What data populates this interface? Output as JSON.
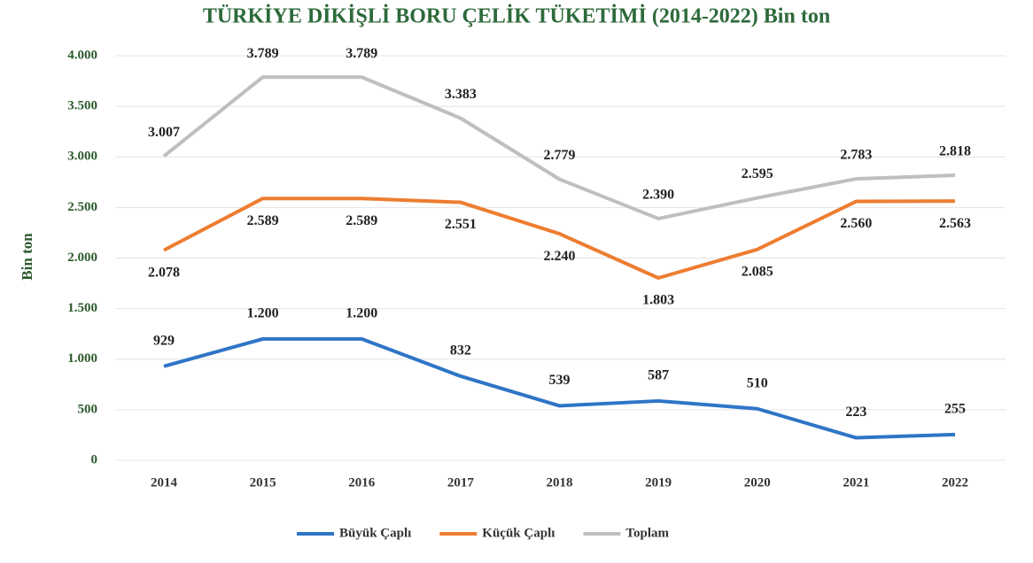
{
  "chart_data": {
    "type": "line",
    "title": "TÜRKİYE DİKİŞLİ BORU ÇELİK TÜKETİMİ (2014-2022) Bin ton",
    "y_label": "Bin ton",
    "categories": [
      "2014",
      "2015",
      "2016",
      "2017",
      "2018",
      "2019",
      "2020",
      "2021",
      "2022"
    ],
    "series": [
      {
        "name": "Büyük Çaplı",
        "color": "#2e75c6",
        "values": [
          929,
          1200,
          1200,
          832,
          539,
          587,
          510,
          223,
          255
        ],
        "value_labels": [
          "929",
          "1.200",
          "1.200",
          "832",
          "539",
          "587",
          "510",
          "223",
          "255"
        ]
      },
      {
        "name": "Küçük Çaplı",
        "color": "#ed7d31",
        "values": [
          2078,
          2589,
          2589,
          2551,
          2240,
          1803,
          2085,
          2560,
          2563
        ],
        "value_labels": [
          "2.078",
          "2.589",
          "2.589",
          "2.551",
          "2.240",
          "1.803",
          "2.085",
          "2.560",
          "2.563"
        ]
      },
      {
        "name": "Toplam",
        "color": "#bfbfbf",
        "values": [
          3007,
          3789,
          3789,
          3383,
          2779,
          2390,
          2595,
          2783,
          2818
        ],
        "value_labels": [
          "3.007",
          "3.789",
          "3.789",
          "3.383",
          "2.779",
          "2.390",
          "2.595",
          "2.783",
          "2.818"
        ]
      }
    ],
    "ylim": [
      0,
      4000
    ],
    "yticks": [
      0,
      500,
      {
        "value": 1000,
        "label": "1.000"
      },
      {
        "value": 1500,
        "label": "1.500"
      },
      {
        "value": 2000,
        "label": "2.000"
      },
      {
        "value": 2500,
        "label": "2.500"
      },
      {
        "value": 3000,
        "label": "3.000"
      },
      {
        "value": 3500,
        "label": "3.500"
      },
      {
        "value": 4000,
        "label": "4.000"
      }
    ],
    "grid": true,
    "legend": "bottom"
  }
}
